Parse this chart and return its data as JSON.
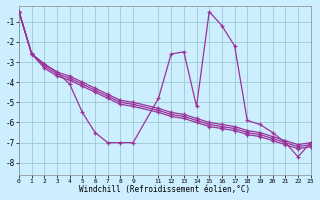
{
  "xlabel": "Windchill (Refroidissement éolien,°C)",
  "bg_color": "#cceeff",
  "line_color": "#993399",
  "grid_color": "#99cccc",
  "xlim": [
    0,
    23
  ],
  "ylim": [
    -8.6,
    -0.2
  ],
  "xticks": [
    0,
    1,
    2,
    3,
    4,
    5,
    6,
    7,
    8,
    9,
    11,
    12,
    13,
    14,
    15,
    16,
    17,
    18,
    19,
    20,
    21,
    22,
    23
  ],
  "yticks": [
    -1,
    -2,
    -3,
    -4,
    -5,
    -6,
    -7,
    -8
  ],
  "series": [
    {
      "x": [
        0,
        1,
        2,
        3,
        4,
        5,
        6,
        7,
        8,
        9,
        11,
        12,
        13,
        14,
        15,
        16,
        17,
        18,
        19,
        20,
        21,
        22,
        23
      ],
      "y": [
        -0.5,
        -2.6,
        -3.1,
        -3.5,
        -4.1,
        -5.5,
        -6.5,
        -7.0,
        -7.0,
        -7.0,
        -4.8,
        -2.6,
        -2.5,
        -5.2,
        -0.5,
        -1.2,
        -2.2,
        -5.9,
        -6.1,
        -6.5,
        -7.0,
        -7.7,
        -7.0
      ]
    },
    {
      "x": [
        0,
        1,
        2,
        3,
        4,
        5,
        6,
        7,
        8,
        9,
        11,
        12,
        13,
        14,
        15,
        16,
        17,
        18,
        19,
        20,
        21,
        22,
        23
      ],
      "y": [
        -0.5,
        -2.6,
        -3.1,
        -3.5,
        -3.7,
        -4.0,
        -4.3,
        -4.6,
        -4.9,
        -5.0,
        -5.3,
        -5.5,
        -5.6,
        -5.8,
        -6.0,
        -6.1,
        -6.2,
        -6.4,
        -6.5,
        -6.7,
        -6.9,
        -7.1,
        -7.0
      ]
    },
    {
      "x": [
        0,
        1,
        2,
        3,
        4,
        5,
        6,
        7,
        8,
        9,
        11,
        12,
        13,
        14,
        15,
        16,
        17,
        18,
        19,
        20,
        21,
        22,
        23
      ],
      "y": [
        -0.5,
        -2.6,
        -3.2,
        -3.6,
        -3.8,
        -4.1,
        -4.4,
        -4.7,
        -5.0,
        -5.1,
        -5.4,
        -5.6,
        -5.7,
        -5.9,
        -6.1,
        -6.2,
        -6.3,
        -6.5,
        -6.6,
        -6.8,
        -7.0,
        -7.2,
        -7.1
      ]
    },
    {
      "x": [
        0,
        1,
        2,
        3,
        4,
        5,
        6,
        7,
        8,
        9,
        11,
        12,
        13,
        14,
        15,
        16,
        17,
        18,
        19,
        20,
        21,
        22,
        23
      ],
      "y": [
        -0.5,
        -2.6,
        -3.3,
        -3.7,
        -3.9,
        -4.2,
        -4.5,
        -4.8,
        -5.1,
        -5.2,
        -5.5,
        -5.7,
        -5.8,
        -6.0,
        -6.2,
        -6.3,
        -6.4,
        -6.6,
        -6.7,
        -6.9,
        -7.1,
        -7.3,
        -7.2
      ]
    }
  ]
}
